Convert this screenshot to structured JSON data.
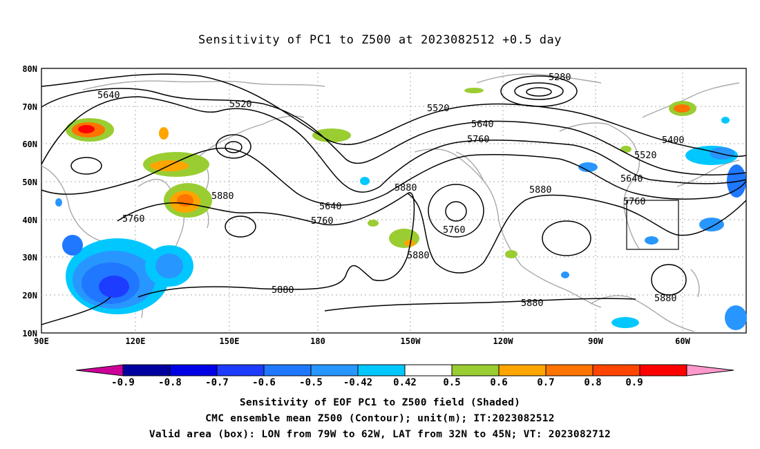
{
  "title": "Sensitivity of PC1 to Z500 at 2023082512 +0.5 day",
  "lat_ticks": [
    "80N",
    "70N",
    "60N",
    "50N",
    "40N",
    "30N",
    "20N",
    "10N"
  ],
  "lon_ticks": [
    "90E",
    "120E",
    "150E",
    "180",
    "150W",
    "120W",
    "90W",
    "60W"
  ],
  "contour_labels": [
    "5280",
    "5400",
    "5520",
    "5520",
    "5520",
    "5640",
    "5640",
    "5640",
    "5640",
    "5760",
    "5760",
    "5760",
    "5760",
    "5760",
    "5880",
    "5880",
    "5880",
    "5880",
    "5880",
    "5880",
    "5880"
  ],
  "colorbar": {
    "labels": [
      "-0.9",
      "-0.8",
      "-0.7",
      "-0.6",
      "-0.5",
      "-0.42",
      "0.42",
      "0.5",
      "0.6",
      "0.7",
      "0.8",
      "0.9"
    ],
    "colors": [
      "#cc0099",
      "#0000a0",
      "#0000e6",
      "#1e3cff",
      "#1f78ff",
      "#2896ff",
      "#00c8ff",
      "#ffffff",
      "#9acd32",
      "#ffa500",
      "#ff7300",
      "#ff4500",
      "#ff0000",
      "#ff99cc"
    ]
  },
  "footer": {
    "line1": "Sensitivity of EOF PC1 to Z500 field (Shaded)",
    "line2": "CMC ensemble mean Z500 (Contour); unit(m); IT:2023082512",
    "line3": "Valid area (box): LON from 79W to 62W, LAT from 32N to 45N; VT: 2023082712"
  },
  "valid_box": {
    "lon": [
      -79,
      -62
    ],
    "lat": [
      32,
      45
    ]
  }
}
